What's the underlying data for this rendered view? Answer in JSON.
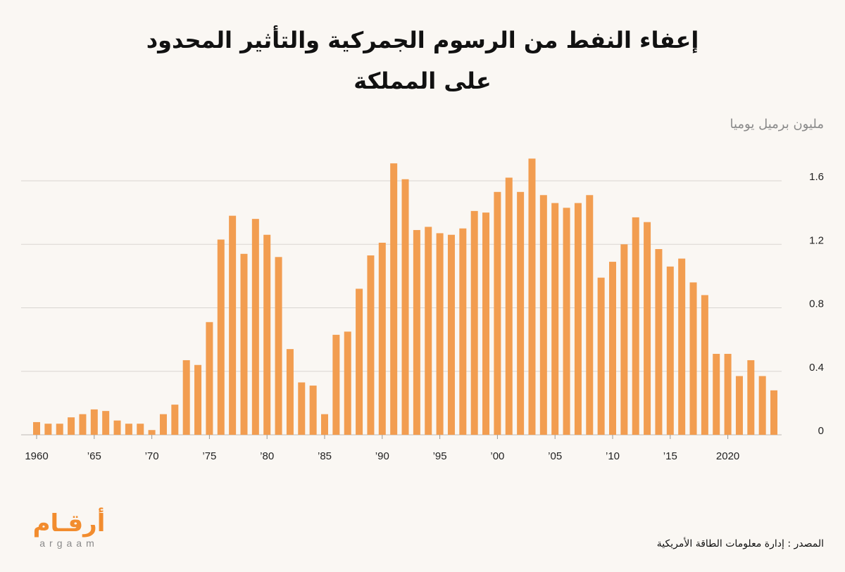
{
  "title_line1": "إعفاء النفط من الرسوم الجمركية والتأثير المحدود",
  "title_line2": "على المملكة",
  "unit_label": "مليون برميل يوميا",
  "source": "المصدر : إدارة معلومات الطاقة الأمريكية",
  "logo": {
    "arabic": "أرقـام",
    "latin": "argaam"
  },
  "colors": {
    "bar": "#f29d50",
    "grid": "#d9d6d2",
    "accent": "#f28c2e"
  },
  "chart_data": {
    "type": "bar",
    "title": "إعفاء النفط من الرسوم الجمركية والتأثير المحدود على المملكة",
    "ylabel": "مليون برميل يوميا",
    "ylim": [
      0,
      1.8
    ],
    "yticks": [
      {
        "value": 0,
        "label": "0"
      },
      {
        "value": 0.4,
        "label": "0.4"
      },
      {
        "value": 0.8,
        "label": "0.8"
      },
      {
        "value": 1.2,
        "label": "1.2"
      },
      {
        "value": 1.6,
        "label": "1.6"
      }
    ],
    "xticks": [
      {
        "year": 1960,
        "label": "1960"
      },
      {
        "year": 1965,
        "label": "’65"
      },
      {
        "year": 1970,
        "label": "’70"
      },
      {
        "year": 1975,
        "label": "’75"
      },
      {
        "year": 1980,
        "label": "’80"
      },
      {
        "year": 1985,
        "label": "’85"
      },
      {
        "year": 1990,
        "label": "’90"
      },
      {
        "year": 1995,
        "label": "’95"
      },
      {
        "year": 2000,
        "label": "’00"
      },
      {
        "year": 2005,
        "label": "’05"
      },
      {
        "year": 2010,
        "label": "’10"
      },
      {
        "year": 2015,
        "label": "’15"
      },
      {
        "year": 2020,
        "label": "2020"
      }
    ],
    "grid": true,
    "x": [
      1960,
      1961,
      1962,
      1963,
      1964,
      1965,
      1966,
      1967,
      1968,
      1969,
      1970,
      1971,
      1972,
      1973,
      1974,
      1975,
      1976,
      1977,
      1978,
      1979,
      1980,
      1981,
      1982,
      1983,
      1984,
      1985,
      1986,
      1987,
      1988,
      1989,
      1990,
      1991,
      1992,
      1993,
      1994,
      1995,
      1996,
      1997,
      1998,
      1999,
      2000,
      2001,
      2002,
      2003,
      2004,
      2005,
      2006,
      2007,
      2008,
      2009,
      2010,
      2011,
      2012,
      2013,
      2014,
      2015,
      2016,
      2017,
      2018,
      2019,
      2020,
      2021,
      2022,
      2023,
      2024
    ],
    "values": [
      0.08,
      0.07,
      0.07,
      0.11,
      0.13,
      0.16,
      0.15,
      0.09,
      0.07,
      0.07,
      0.03,
      0.13,
      0.19,
      0.47,
      0.44,
      0.71,
      1.23,
      1.38,
      1.14,
      1.36,
      1.26,
      1.12,
      0.54,
      0.33,
      0.31,
      0.13,
      0.63,
      0.65,
      0.92,
      1.13,
      1.21,
      1.71,
      1.61,
      1.29,
      1.31,
      1.27,
      1.26,
      1.3,
      1.41,
      1.4,
      1.53,
      1.62,
      1.53,
      1.74,
      1.51,
      1.46,
      1.43,
      1.46,
      1.51,
      0.99,
      1.09,
      1.2,
      1.37,
      1.34,
      1.17,
      1.06,
      1.11,
      0.96,
      0.88,
      0.51,
      0.51,
      0.37,
      0.47,
      0.37,
      0.28
    ]
  }
}
